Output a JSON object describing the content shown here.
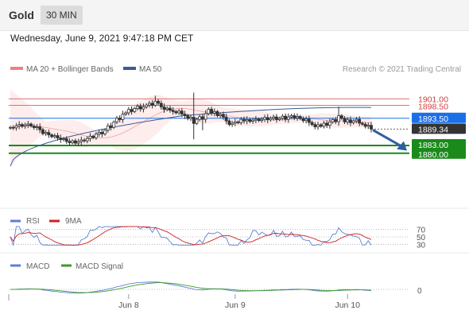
{
  "header": {
    "asset": "Gold",
    "timeframe": "30 MIN"
  },
  "datetime": "Wednesday, June 9, 2021 9:47:18 PM CET",
  "credit": "Research © 2021 Trading Central",
  "colors": {
    "bollinger": "#f08080",
    "ma50": "#3a5a9a",
    "resistance_line": "#e07070",
    "pivot_blue": "#1a6fe8",
    "support_green": "#1a8a1a",
    "last_price_box": "#333333",
    "arrow": "#2e5f9e",
    "rsi": "#5b7fd6",
    "rsi_ma": "#d02020",
    "macd": "#5b7fd6",
    "macd_signal": "#3c9a2c",
    "candle_up": "#ffffff",
    "candle_down": "#333333"
  },
  "chart_data": [
    {
      "type": "candlestick",
      "legend": [
        "MA 20 + Bollinger Bands",
        "MA 50"
      ],
      "x_ticks": [
        "Jun 8",
        "Jun 9",
        "Jun 10"
      ],
      "ylim": [
        1860,
        1910
      ],
      "levels": [
        {
          "label": "1901.00",
          "value": 1901.0,
          "kind": "resistance"
        },
        {
          "label": "1898.50",
          "value": 1898.5,
          "kind": "resistance"
        },
        {
          "label": "1893.50",
          "value": 1893.5,
          "kind": "pivot"
        },
        {
          "label": "1889.34",
          "value": 1889.34,
          "kind": "last"
        },
        {
          "label": "1883.00",
          "value": 1883.0,
          "kind": "support"
        },
        {
          "label": "1880.00",
          "value": 1880.0,
          "kind": "support"
        }
      ],
      "close": [
        1890.0,
        1889.8,
        1890.6,
        1891.1,
        1890.4,
        1890.9,
        1891.3,
        1890.5,
        1889.9,
        1890.2,
        1889.1,
        1887.6,
        1888.0,
        1887.1,
        1886.4,
        1886.8,
        1885.9,
        1885.3,
        1885.6,
        1884.6,
        1884.1,
        1884.8,
        1883.9,
        1884.5,
        1885.1,
        1884.8,
        1885.7,
        1886.6,
        1886.0,
        1887.4,
        1888.1,
        1887.5,
        1888.9,
        1890.6,
        1890.0,
        1892.1,
        1893.6,
        1893.0,
        1895.1,
        1895.6,
        1896.9,
        1896.1,
        1897.3,
        1898.1,
        1897.1,
        1897.9,
        1898.6,
        1899.3,
        1898.5,
        1900.1,
        1899.3,
        1897.9,
        1896.9,
        1897.4,
        1896.6,
        1896.1,
        1895.6,
        1896.3,
        1895.1,
        1894.5,
        1893.4,
        1893.9,
        1891.5,
        1893.1,
        1894.1,
        1893.1,
        1895.3,
        1897.0,
        1895.5,
        1896.1,
        1894.5,
        1895.0,
        1894.0,
        1892.5,
        1891.1,
        1891.6,
        1892.1,
        1891.8,
        1893.1,
        1892.5,
        1893.0,
        1892.3,
        1892.8,
        1893.2,
        1892.6,
        1893.1,
        1893.8,
        1892.9,
        1893.5,
        1894.0,
        1893.0,
        1893.5,
        1894.3,
        1893.1,
        1894.0,
        1894.5,
        1893.7,
        1894.2,
        1893.4,
        1892.6,
        1893.2,
        1891.9,
        1891.1,
        1890.2,
        1891.0,
        1890.4,
        1891.6,
        1890.8,
        1892.1,
        1893.0,
        1892.2,
        1894.5,
        1893.5,
        1892.1,
        1892.9,
        1891.8,
        1892.5,
        1893.1,
        1891.6,
        1891.2,
        1890.4,
        1890.8,
        1889.34
      ],
      "ma50": [
        1875.0,
        1894.6,
        1897.7
      ],
      "rsi": {
        "legend": [
          "RSI",
          "9MA"
        ],
        "levels": [
          70,
          50,
          30
        ]
      },
      "macd": {
        "legend": [
          "MACD",
          "MACD Signal"
        ],
        "levels": [
          0
        ]
      }
    }
  ]
}
